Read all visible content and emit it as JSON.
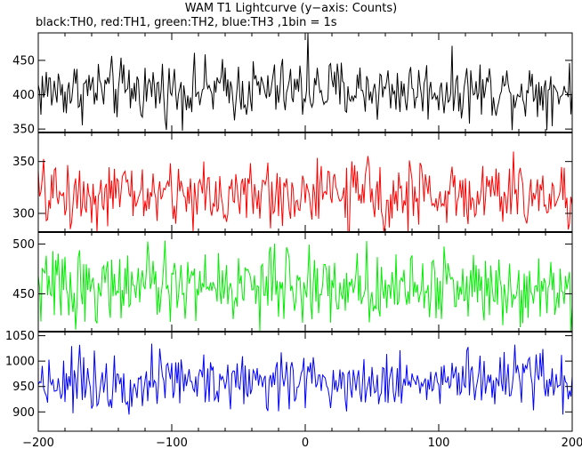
{
  "chart_data": {
    "type": "line",
    "title": "WAM T1 Lightcurve (y−axis: Counts)",
    "subtitle": "black:TH0, red:TH1, green:TH2, blue:TH3 ,1bin = 1s",
    "xlim": [
      -200,
      200
    ],
    "x_ticks": [
      -200,
      -100,
      0,
      100,
      200
    ],
    "x_tick_labels": [
      "−200",
      "−100",
      "0",
      "100",
      "200"
    ],
    "bin_seconds": 1,
    "panels": [
      {
        "series": "TH0",
        "color": "#000000",
        "ylim": [
          345,
          490
        ],
        "y_ticks": [
          350,
          400,
          450
        ],
        "baseline": 407,
        "noise": 22,
        "spike": {
          "x": 2,
          "value": 490
        }
      },
      {
        "series": "TH1",
        "color": "#ff0000",
        "ylim": [
          282,
          378
        ],
        "y_ticks": [
          300,
          350
        ],
        "baseline": 318,
        "noise": 16
      },
      {
        "series": "TH2",
        "color": "#00ee00",
        "ylim": [
          412,
          512
        ],
        "y_ticks": [
          450,
          500
        ],
        "baseline": 458,
        "noise": 18
      },
      {
        "series": "TH3",
        "color": "#0000ff",
        "ylim": [
          862,
          1058
        ],
        "y_ticks": [
          900,
          950,
          1000,
          1050
        ],
        "baseline": 962,
        "noise": 28
      }
    ]
  }
}
